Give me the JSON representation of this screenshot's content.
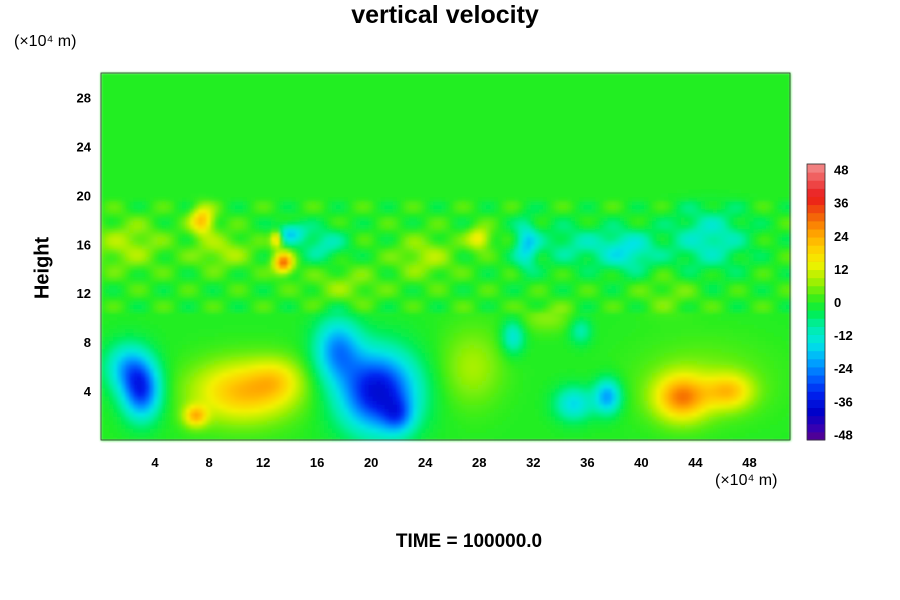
{
  "chart_data": {
    "type": "heatmap",
    "title": "vertical velocity",
    "ylabel": "Height",
    "xlabel": "",
    "x_unit_label": "(×10⁴ m)",
    "y_unit_label": "(×10⁴ m)",
    "footer": "TIME = 100000.0",
    "xlim": [
      0,
      51
    ],
    "ylim": [
      0,
      30
    ],
    "x_ticks": [
      4,
      8,
      12,
      16,
      20,
      24,
      28,
      32,
      36,
      40,
      44,
      48
    ],
    "y_ticks": [
      4,
      8,
      12,
      16,
      20,
      24,
      28
    ],
    "colorbar": {
      "range": [
        -50,
        50
      ],
      "ticks": [
        48,
        36,
        24,
        12,
        0,
        -12,
        -24,
        -36,
        -48
      ],
      "levels": [
        {
          "v": 50,
          "color": "#f39090"
        },
        {
          "v": 44,
          "color": "#ef5050"
        },
        {
          "v": 38,
          "color": "#ea1a1a"
        },
        {
          "v": 32,
          "color": "#f25a0a"
        },
        {
          "v": 26,
          "color": "#ff9a00"
        },
        {
          "v": 20,
          "color": "#ffcc00"
        },
        {
          "v": 14,
          "color": "#f2f200"
        },
        {
          "v": 8,
          "color": "#a8f000"
        },
        {
          "v": 3,
          "color": "#55ee10"
        },
        {
          "v": 0,
          "color": "#22ee22"
        },
        {
          "v": -4,
          "color": "#00ee55"
        },
        {
          "v": -9,
          "color": "#00eeaa"
        },
        {
          "v": -15,
          "color": "#00e5e5"
        },
        {
          "v": -21,
          "color": "#00aaff"
        },
        {
          "v": -27,
          "color": "#0066ff"
        },
        {
          "v": -33,
          "color": "#0022f0"
        },
        {
          "v": -40,
          "color": "#0000c8"
        },
        {
          "v": -46,
          "color": "#3a00b0"
        },
        {
          "v": -50,
          "color": "#5a008a"
        }
      ]
    },
    "features": [
      {
        "x": 3.0,
        "y": 4.0,
        "sx": 1.0,
        "sy": 1.6,
        "w": -30
      },
      {
        "x": 2.0,
        "y": 6.0,
        "sx": 1.2,
        "sy": 1.4,
        "w": -18
      },
      {
        "x": 10.5,
        "y": 4.0,
        "sx": 2.6,
        "sy": 1.7,
        "w": 22
      },
      {
        "x": 13.0,
        "y": 5.0,
        "sx": 1.3,
        "sy": 1.2,
        "w": 10
      },
      {
        "x": 7.0,
        "y": 2.0,
        "sx": 0.6,
        "sy": 0.6,
        "w": 20
      },
      {
        "x": 17.5,
        "y": 7.5,
        "sx": 1.2,
        "sy": 1.8,
        "w": -22
      },
      {
        "x": 20.5,
        "y": 4.0,
        "sx": 2.0,
        "sy": 2.3,
        "w": -38
      },
      {
        "x": 22.0,
        "y": 2.0,
        "sx": 0.8,
        "sy": 1.0,
        "w": -14
      },
      {
        "x": 27.5,
        "y": 6.0,
        "sx": 1.6,
        "sy": 2.2,
        "w": 8
      },
      {
        "x": 35.0,
        "y": 3.0,
        "sx": 1.0,
        "sy": 1.0,
        "w": -16
      },
      {
        "x": 37.5,
        "y": 3.6,
        "sx": 0.7,
        "sy": 1.0,
        "w": -22
      },
      {
        "x": 30.5,
        "y": 8.5,
        "sx": 0.6,
        "sy": 1.0,
        "w": -14
      },
      {
        "x": 35.5,
        "y": 9.0,
        "sx": 0.6,
        "sy": 0.8,
        "w": -10
      },
      {
        "x": 43.0,
        "y": 3.5,
        "sx": 1.4,
        "sy": 1.3,
        "w": 26
      },
      {
        "x": 46.5,
        "y": 4.0,
        "sx": 1.2,
        "sy": 1.0,
        "w": 18
      },
      {
        "x": 44.5,
        "y": 5.0,
        "sx": 3.5,
        "sy": 2.2,
        "w": 5
      },
      {
        "x": 7.5,
        "y": 18.0,
        "sx": 0.6,
        "sy": 0.8,
        "w": 22
      },
      {
        "x": 13.5,
        "y": 14.5,
        "sx": 0.5,
        "sy": 0.6,
        "w": 30
      },
      {
        "x": 13.0,
        "y": 16.5,
        "sx": 0.3,
        "sy": 0.5,
        "w": 22
      },
      {
        "x": 14.0,
        "y": 17.0,
        "sx": 0.8,
        "sy": 0.6,
        "w": -16
      },
      {
        "x": 16.5,
        "y": 16.0,
        "sx": 1.2,
        "sy": 1.0,
        "w": -10
      },
      {
        "x": 31.5,
        "y": 16.0,
        "sx": 0.6,
        "sy": 1.4,
        "w": -16
      },
      {
        "x": 28.0,
        "y": 16.5,
        "sx": 0.6,
        "sy": 0.6,
        "w": 16
      },
      {
        "x": 35.0,
        "y": 16.0,
        "sx": 2.0,
        "sy": 1.2,
        "w": -8
      },
      {
        "x": 39.0,
        "y": 15.5,
        "sx": 1.5,
        "sy": 1.2,
        "w": -14
      },
      {
        "x": 45.0,
        "y": 16.5,
        "sx": 2.0,
        "sy": 1.8,
        "w": -12
      },
      {
        "x": 2.0,
        "y": 16.0,
        "sx": 1.8,
        "sy": 1.4,
        "w": 8
      },
      {
        "x": 9.0,
        "y": 15.5,
        "sx": 1.5,
        "sy": 1.0,
        "w": 8
      },
      {
        "x": 18.0,
        "y": 12.5,
        "sx": 1.8,
        "sy": 1.2,
        "w": 6
      },
      {
        "x": 24.0,
        "y": 15.0,
        "sx": 1.5,
        "sy": 1.2,
        "w": 8
      },
      {
        "x": 33.0,
        "y": 10.0,
        "sx": 1.5,
        "sy": 0.8,
        "w": 6
      },
      {
        "x": 42.0,
        "y": 12.0,
        "sx": 1.5,
        "sy": 1.2,
        "w": 4
      }
    ]
  }
}
